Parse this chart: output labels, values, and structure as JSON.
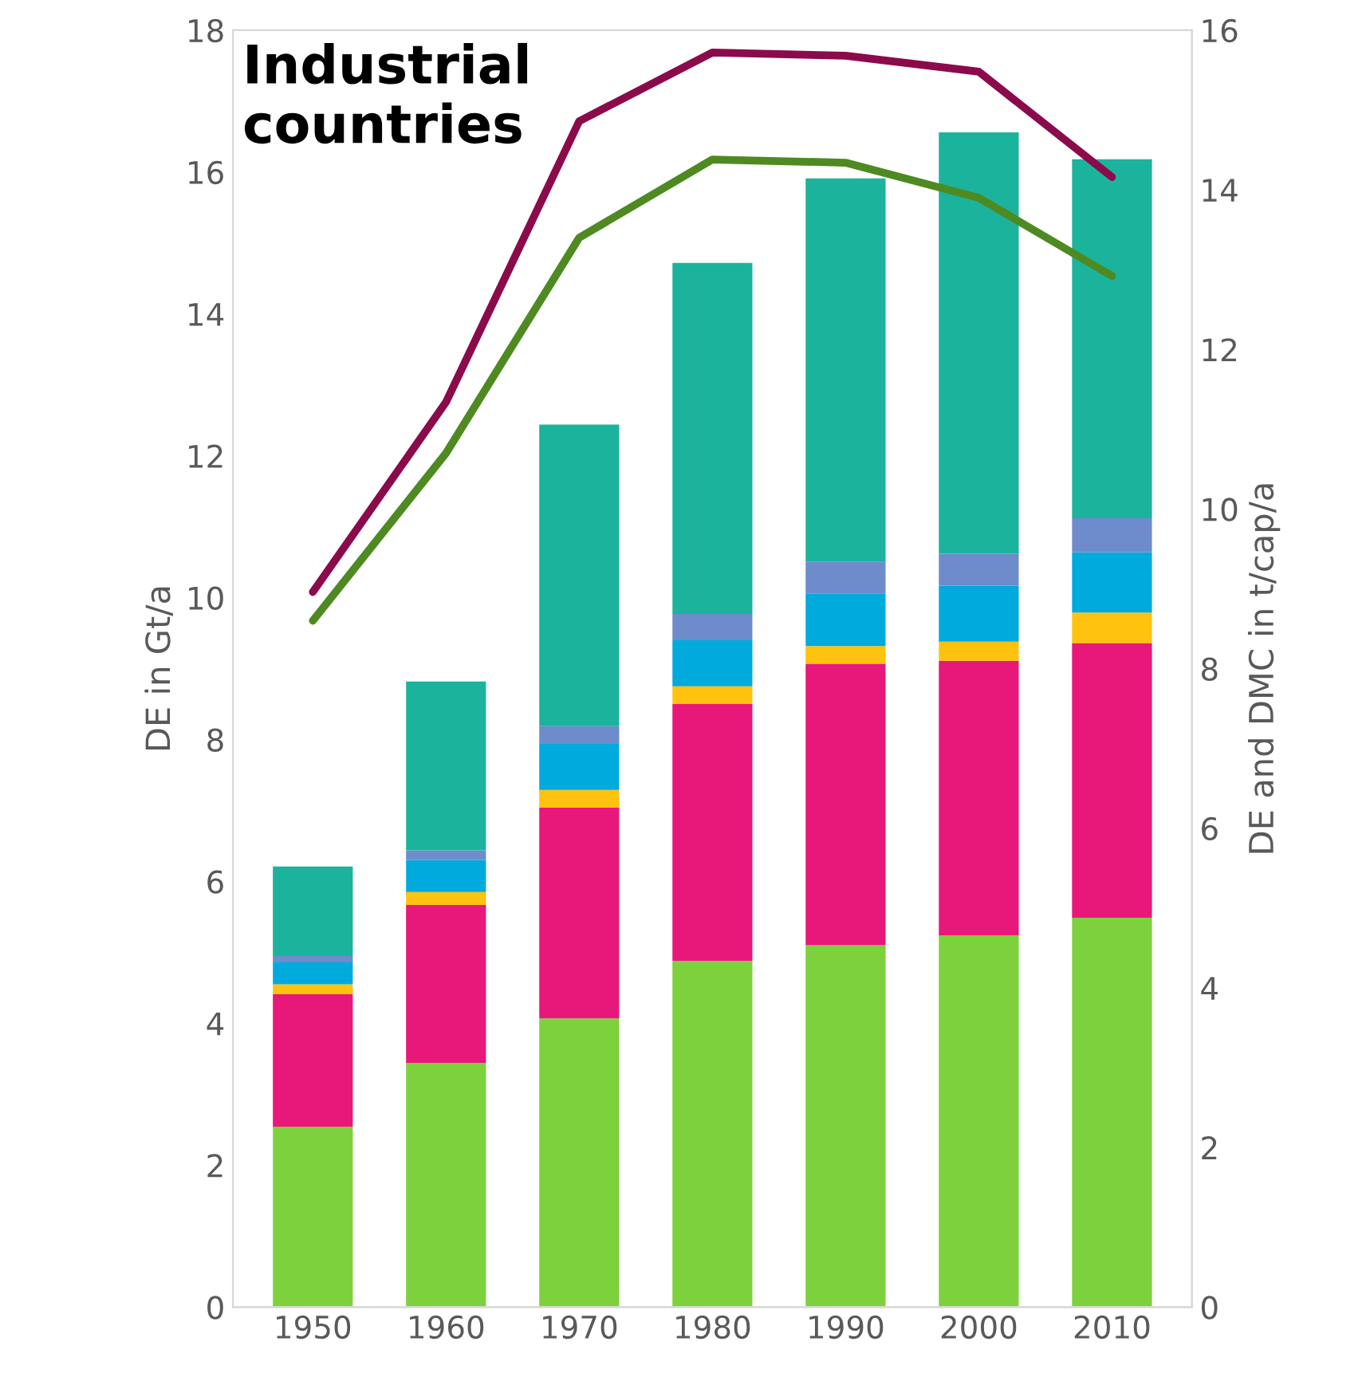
{
  "chart_data": {
    "type": "bar",
    "stacked": true,
    "title": "Industrial\ncountries",
    "ylabel": "DE in Gt/a",
    "y2label": "DE and DMC in t/cap/a",
    "categories": [
      "1950",
      "1960",
      "1970",
      "1980",
      "1990",
      "2000",
      "2010"
    ],
    "series": [
      {
        "color": "#7dd13d",
        "values": [
          2.54,
          3.44,
          4.07,
          4.88,
          5.1,
          5.24,
          5.49
        ]
      },
      {
        "color": "#e8177a",
        "values": [
          1.87,
          2.23,
          2.97,
          3.62,
          3.97,
          3.87,
          3.87
        ]
      },
      {
        "color": "#ffc20e",
        "values": [
          0.14,
          0.18,
          0.25,
          0.25,
          0.25,
          0.27,
          0.43
        ]
      },
      {
        "color": "#00aadd",
        "values": [
          0.31,
          0.45,
          0.65,
          0.65,
          0.74,
          0.79,
          0.85
        ]
      },
      {
        "color": "#6e8bcc",
        "values": [
          0.09,
          0.14,
          0.25,
          0.37,
          0.45,
          0.45,
          0.48
        ]
      },
      {
        "color": "#1bb39c",
        "values": [
          1.26,
          2.38,
          4.25,
          4.95,
          5.4,
          5.94,
          5.06
        ]
      },
      {
        "type": "line",
        "axis": "y2",
        "color": "#8b0a4b",
        "values": [
          8.96,
          11.34,
          14.86,
          15.72,
          15.68,
          15.48,
          14.16
        ]
      },
      {
        "type": "line",
        "axis": "y2",
        "color": "#4e8a21",
        "values": [
          8.6,
          10.7,
          13.4,
          14.38,
          14.34,
          13.9,
          12.92
        ]
      }
    ],
    "ylim": [
      0,
      18
    ],
    "yticks": [
      0,
      2,
      4,
      6,
      8,
      10,
      12,
      14,
      16,
      18
    ],
    "y2lim": [
      0,
      16
    ],
    "y2ticks": [
      0,
      2,
      4,
      6,
      8,
      10,
      12,
      14,
      16
    ],
    "grid": false,
    "legend": false,
    "marker": "none",
    "line_style": "solid"
  }
}
